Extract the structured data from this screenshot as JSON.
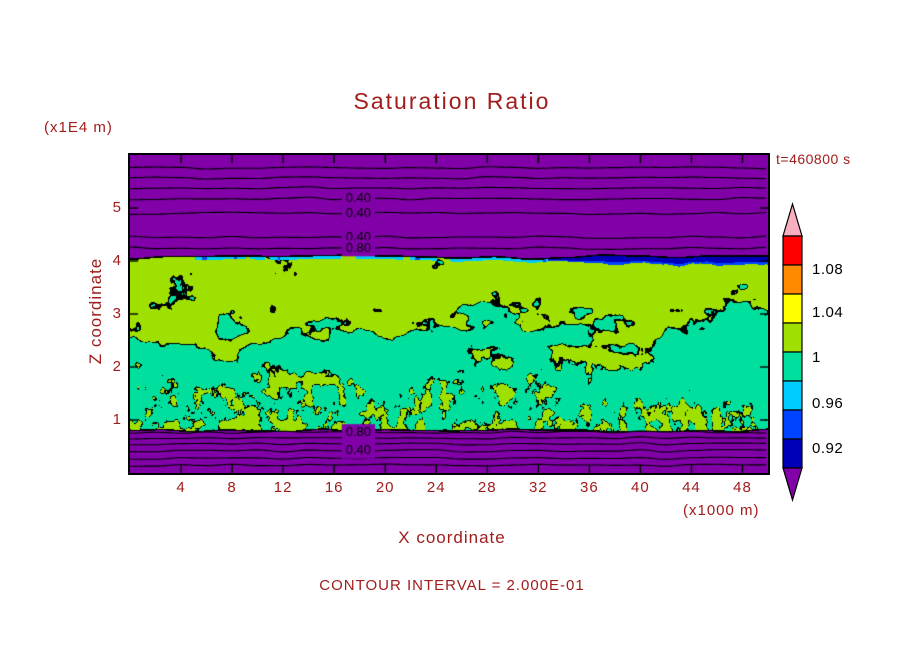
{
  "figure": {
    "background": "#FFFFFF"
  },
  "colors": {
    "purple": "#8100A8",
    "green": "#9FE000",
    "teal": "#00DF9E",
    "cyan": "#00CCFF",
    "blue": "#0044FF",
    "navy": "#0000B8",
    "axis_text": "#A01D1D",
    "contour_line": "#000000"
  },
  "chart_data": {
    "type": "heatmap",
    "title": "Saturation Ratio",
    "time_label": "t=460800 s",
    "xlabel": "X coordinate",
    "ylabel": "Z coordinate",
    "x_units_label": "(x1000 m)",
    "y_units_label": "(x1E4 m)",
    "contour_note": "CONTOUR INTERVAL = 2.000E-01",
    "x_range": [
      0,
      50
    ],
    "z_range": [
      0,
      6
    ],
    "x_ticks": [
      4,
      8,
      12,
      16,
      20,
      24,
      28,
      32,
      36,
      40,
      44,
      48
    ],
    "z_ticks": [
      1,
      2,
      3,
      4,
      5
    ],
    "band": {
      "z_top": 4.06,
      "z_bottom": 0.82
    },
    "contour_label_x": 17.9,
    "contour_lines": [
      {
        "z": 5.76
      },
      {
        "z": 5.57
      },
      {
        "z": 5.38
      },
      {
        "z": 5.18,
        "label": "0.40"
      },
      {
        "z": 4.9,
        "label": "0.40"
      },
      {
        "z": 4.45,
        "label": "0.40"
      },
      {
        "z": 4.24,
        "label": "0.80"
      },
      {
        "z": 0.77,
        "label": "0.80"
      },
      {
        "z": 0.66
      },
      {
        "z": 0.55
      },
      {
        "z": 0.42,
        "label": "0.40"
      },
      {
        "z": 0.28
      },
      {
        "z": 0.15
      }
    ],
    "colorbar": {
      "labels": [
        "1.08",
        "1.04",
        "1",
        "0.96",
        "0.92"
      ],
      "segment_colors": [
        "#FF0000",
        "#FF8A00",
        "#FFFF00",
        "#9FE000",
        "#00DF9E",
        "#00CCFF",
        "#0044FF",
        "#0000B8"
      ],
      "arrow_top_color": "#F9AFC0",
      "arrow_bottom_color": "#8100A8"
    }
  }
}
